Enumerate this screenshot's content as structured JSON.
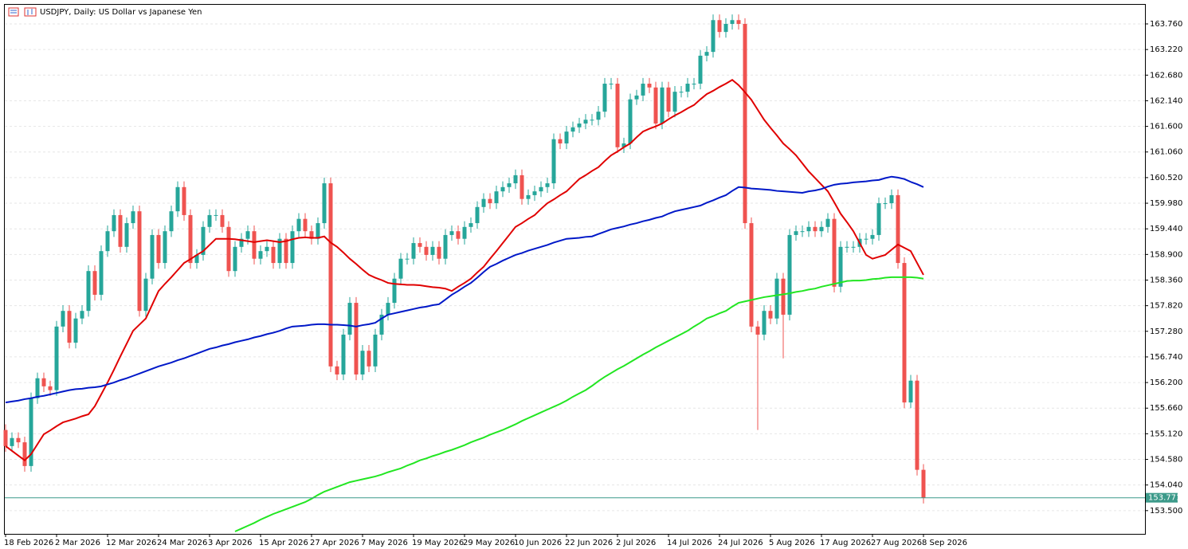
{
  "chart_data": {
    "type": "candlestick",
    "title": "USDJPY, Daily: US Dollar vs Japanese Yen",
    "categories": [
      "18 Feb 2026",
      null,
      null,
      null,
      null,
      null,
      null,
      null,
      "2 Mar 2026",
      null,
      null,
      null,
      null,
      null,
      null,
      null,
      "12 Mar 2026",
      null,
      null,
      null,
      null,
      null,
      null,
      null,
      "24 Mar 2026",
      null,
      null,
      null,
      null,
      null,
      null,
      null,
      "3 Apr 2026",
      null,
      null,
      null,
      null,
      null,
      null,
      null,
      "15 Apr 2026",
      null,
      null,
      null,
      null,
      null,
      null,
      null,
      "27 Apr 2026",
      null,
      null,
      null,
      null,
      null,
      null,
      null,
      "7 May 2026",
      null,
      null,
      null,
      null,
      null,
      null,
      null,
      "19 May 2026",
      null,
      null,
      null,
      null,
      null,
      null,
      null,
      "29 May 2026",
      null,
      null,
      null,
      null,
      null,
      null,
      null,
      "10 Jun 2026",
      null,
      null,
      null,
      null,
      null,
      null,
      null,
      "22 Jun 2026",
      null,
      null,
      null,
      null,
      null,
      null,
      null,
      "2 Jul 2026",
      null,
      null,
      null,
      null,
      null,
      null,
      null,
      "14 Jul 2026",
      null,
      null,
      null,
      null,
      null,
      null,
      null,
      "24 Jul 2026",
      null,
      null,
      null,
      null,
      null,
      null,
      null,
      "5 Aug 2026",
      null,
      null,
      null,
      null,
      null,
      null,
      null,
      "17 Aug 2026",
      null,
      null,
      null,
      null,
      null,
      null,
      null,
      "27 Aug 2026",
      null,
      null,
      null,
      null,
      null,
      null,
      null,
      "8 Sep 2026"
    ],
    "open": [
      155.2,
      154.86,
      155.03,
      154.94,
      154.44,
      155.87,
      156.29,
      156.12,
      156.04,
      157.38,
      157.71,
      157.04,
      157.55,
      157.71,
      158.55,
      158.05,
      158.97,
      159.39,
      159.73,
      159.06,
      159.56,
      159.81,
      157.71,
      158.39,
      159.31,
      158.72,
      159.39,
      159.81,
      160.32,
      159.73,
      158.72,
      158.89,
      159.48,
      159.73,
      159.73,
      159.48,
      158.55,
      159.06,
      159.23,
      159.39,
      158.81,
      158.97,
      159.06,
      158.72,
      159.23,
      158.72,
      159.39,
      159.65,
      159.39,
      159.23,
      159.56,
      160.4,
      156.54,
      156.37,
      157.21,
      157.88,
      156.37,
      156.87,
      156.54,
      157.21,
      157.63,
      157.88,
      158.39,
      158.81,
      158.81,
      159.14,
      159.06,
      158.89,
      159.06,
      158.81,
      159.31,
      159.39,
      159.23,
      159.48,
      159.56,
      159.9,
      160.07,
      159.98,
      160.23,
      160.32,
      160.4,
      160.57,
      160.07,
      160.15,
      160.23,
      160.32,
      160.4,
      161.33,
      161.24,
      161.49,
      161.58,
      161.66,
      161.74,
      161.74,
      161.91,
      162.5,
      162.5,
      161.16,
      161.24,
      162.17,
      162.25,
      162.5,
      162.42,
      161.66,
      162.42,
      161.91,
      162.33,
      162.33,
      162.5,
      162.5,
      163.09,
      163.17,
      163.84,
      163.59,
      163.76,
      163.84,
      163.76,
      159.56,
      157.38,
      157.21,
      157.71,
      157.55,
      158.39,
      157.63,
      159.31,
      159.39,
      159.39,
      159.48,
      159.39,
      159.48,
      159.65,
      158.22,
      159.06,
      159.06,
      159.06,
      159.23,
      159.23,
      159.31,
      159.98,
      159.98,
      160.15,
      158.72,
      155.78,
      156.24,
      154.36
    ],
    "high": [
      155.32,
      155.15,
      155.15,
      155.06,
      155.99,
      156.41,
      156.41,
      156.24,
      157.5,
      157.83,
      157.83,
      157.67,
      157.83,
      158.67,
      158.67,
      159.09,
      159.51,
      159.85,
      159.85,
      159.68,
      159.93,
      159.93,
      158.51,
      159.43,
      159.43,
      159.51,
      159.93,
      160.44,
      160.44,
      159.85,
      159.01,
      159.6,
      159.85,
      159.85,
      159.85,
      159.6,
      159.18,
      159.35,
      159.51,
      159.51,
      159.09,
      159.18,
      159.18,
      159.35,
      159.35,
      159.51,
      159.77,
      159.77,
      159.51,
      159.68,
      160.52,
      160.52,
      156.66,
      157.33,
      158.0,
      158.0,
      156.99,
      156.99,
      157.33,
      157.75,
      158.0,
      158.51,
      158.93,
      158.93,
      159.26,
      159.26,
      159.18,
      159.18,
      159.18,
      159.43,
      159.51,
      159.51,
      159.6,
      159.68,
      160.02,
      160.19,
      160.19,
      160.35,
      160.44,
      160.52,
      160.69,
      160.69,
      160.27,
      160.35,
      160.44,
      160.52,
      161.45,
      161.45,
      161.61,
      161.7,
      161.78,
      161.86,
      161.86,
      162.03,
      162.62,
      162.62,
      162.62,
      161.36,
      162.29,
      162.37,
      162.62,
      162.62,
      162.54,
      162.54,
      162.54,
      162.45,
      162.45,
      162.62,
      162.62,
      163.21,
      163.29,
      163.96,
      163.96,
      163.88,
      163.96,
      163.96,
      163.88,
      159.68,
      157.5,
      157.83,
      157.83,
      158.51,
      158.51,
      159.43,
      159.51,
      159.51,
      159.6,
      159.6,
      159.6,
      159.77,
      159.77,
      159.18,
      159.18,
      159.18,
      159.35,
      159.35,
      159.43,
      160.1,
      160.1,
      160.27,
      160.27,
      158.84,
      156.36,
      156.36,
      154.48
    ],
    "low": [
      154.74,
      154.74,
      154.82,
      154.32,
      154.32,
      155.75,
      156.0,
      155.92,
      155.92,
      157.26,
      156.92,
      156.92,
      157.43,
      157.59,
      157.93,
      157.93,
      158.85,
      159.27,
      158.94,
      158.94,
      159.44,
      157.59,
      157.59,
      158.27,
      158.6,
      158.6,
      159.27,
      159.69,
      159.61,
      158.6,
      158.6,
      158.77,
      159.36,
      159.61,
      159.36,
      158.43,
      158.43,
      158.94,
      159.11,
      158.69,
      158.69,
      158.85,
      158.6,
      158.6,
      158.6,
      158.6,
      159.27,
      159.27,
      159.11,
      159.11,
      159.44,
      156.42,
      156.25,
      156.25,
      157.09,
      156.25,
      156.25,
      156.42,
      156.42,
      157.09,
      157.51,
      157.76,
      158.27,
      158.69,
      158.69,
      158.94,
      158.77,
      158.77,
      158.69,
      158.69,
      159.19,
      159.11,
      159.11,
      159.36,
      159.44,
      159.78,
      159.86,
      159.86,
      160.11,
      160.2,
      160.28,
      159.95,
      159.95,
      160.03,
      160.11,
      160.2,
      160.28,
      161.12,
      161.12,
      161.37,
      161.46,
      161.54,
      161.62,
      161.62,
      161.79,
      162.38,
      161.04,
      161.04,
      161.12,
      162.05,
      162.13,
      162.3,
      161.54,
      161.54,
      161.79,
      161.79,
      162.21,
      162.21,
      162.38,
      162.38,
      162.97,
      163.05,
      163.47,
      163.47,
      163.64,
      163.64,
      159.44,
      157.26,
      155.2,
      157.09,
      157.43,
      157.43,
      156.71,
      157.51,
      159.19,
      159.27,
      159.27,
      159.27,
      159.27,
      159.36,
      158.1,
      158.1,
      158.94,
      158.94,
      158.94,
      159.11,
      159.11,
      159.19,
      159.86,
      159.86,
      158.6,
      155.66,
      155.66,
      154.24,
      153.65
    ],
    "close": [
      154.86,
      155.03,
      154.94,
      154.44,
      155.87,
      156.29,
      156.12,
      156.04,
      157.38,
      157.71,
      157.04,
      157.55,
      157.71,
      158.55,
      158.05,
      158.97,
      159.39,
      159.73,
      159.06,
      159.56,
      159.81,
      157.71,
      158.39,
      159.31,
      158.72,
      159.39,
      159.81,
      160.32,
      159.73,
      158.72,
      158.89,
      159.48,
      159.73,
      159.73,
      159.48,
      158.55,
      159.06,
      159.23,
      159.39,
      158.81,
      158.97,
      159.06,
      158.72,
      159.23,
      158.72,
      159.39,
      159.65,
      159.39,
      159.23,
      159.56,
      160.4,
      156.54,
      156.37,
      157.21,
      157.88,
      156.37,
      156.87,
      156.54,
      157.21,
      157.63,
      157.88,
      158.39,
      158.81,
      158.81,
      159.14,
      159.06,
      158.89,
      159.06,
      158.81,
      159.31,
      159.39,
      159.23,
      159.48,
      159.56,
      159.9,
      160.07,
      159.98,
      160.23,
      160.32,
      160.4,
      160.57,
      160.07,
      160.15,
      160.23,
      160.32,
      160.4,
      161.33,
      161.24,
      161.49,
      161.58,
      161.66,
      161.74,
      161.74,
      161.91,
      162.5,
      162.5,
      161.16,
      161.24,
      162.17,
      162.25,
      162.5,
      162.42,
      161.66,
      162.42,
      161.91,
      162.33,
      162.33,
      162.5,
      162.5,
      163.09,
      163.17,
      163.84,
      163.59,
      163.76,
      163.84,
      163.76,
      159.56,
      157.38,
      157.21,
      157.71,
      157.55,
      158.39,
      157.63,
      159.31,
      159.39,
      159.39,
      159.48,
      159.39,
      159.48,
      159.65,
      158.22,
      159.06,
      159.06,
      159.06,
      159.23,
      159.23,
      159.31,
      159.98,
      159.98,
      160.15,
      158.72,
      155.78,
      156.24,
      154.36,
      153.77
    ],
    "up_color": "#26a69a",
    "down_color": "#ef5350",
    "overlays": [
      {
        "color": "#e00000",
        "values": [
          154.86,
          154.76,
          154.66,
          154.56,
          154.69,
          154.9,
          155.11,
          155.19,
          155.28,
          155.36,
          155.4,
          155.44,
          155.49,
          155.53,
          155.7,
          155.95,
          156.2,
          156.47,
          156.75,
          157.02,
          157.29,
          157.42,
          157.55,
          157.84,
          158.13,
          158.28,
          158.42,
          158.57,
          158.72,
          158.8,
          158.89,
          158.97,
          159.1,
          159.23,
          159.23,
          159.23,
          159.22,
          159.2,
          159.18,
          159.16,
          159.18,
          159.2,
          159.18,
          159.16,
          159.18,
          159.22,
          159.25,
          159.26,
          159.25,
          159.25,
          159.28,
          159.15,
          159.06,
          158.94,
          158.81,
          158.7,
          158.58,
          158.47,
          158.41,
          158.36,
          158.3,
          158.28,
          158.27,
          158.26,
          158.26,
          158.25,
          158.23,
          158.21,
          158.2,
          158.18,
          158.13,
          158.22,
          158.3,
          158.39,
          158.52,
          158.64,
          158.81,
          158.97,
          159.14,
          159.31,
          159.48,
          159.56,
          159.65,
          159.73,
          159.86,
          159.98,
          160.06,
          160.15,
          160.23,
          160.36,
          160.49,
          160.57,
          160.66,
          160.74,
          160.87,
          160.99,
          161.07,
          161.16,
          161.24,
          161.37,
          161.49,
          161.55,
          161.6,
          161.66,
          161.75,
          161.83,
          161.9,
          161.98,
          162.05,
          162.17,
          162.28,
          162.35,
          162.43,
          162.5,
          162.58,
          162.47,
          162.32,
          162.16,
          161.95,
          161.74,
          161.57,
          161.41,
          161.24,
          161.12,
          160.99,
          160.82,
          160.65,
          160.51,
          160.37,
          160.23,
          160.0,
          159.76,
          159.58,
          159.39,
          159.14,
          158.89,
          158.81,
          158.85,
          158.89,
          159.0,
          159.11,
          159.04,
          158.97,
          158.72,
          158.47
        ]
      },
      {
        "color": "#0018c8",
        "values": [
          155.78,
          155.8,
          155.82,
          155.85,
          155.87,
          155.9,
          155.92,
          155.95,
          155.98,
          156.01,
          156.04,
          156.06,
          156.07,
          156.09,
          156.1,
          156.12,
          156.16,
          156.2,
          156.25,
          156.29,
          156.34,
          156.39,
          156.44,
          156.49,
          156.54,
          156.58,
          156.62,
          156.67,
          156.71,
          156.76,
          156.81,
          156.86,
          156.91,
          156.94,
          156.98,
          157.01,
          157.05,
          157.08,
          157.11,
          157.15,
          157.18,
          157.22,
          157.25,
          157.29,
          157.34,
          157.38,
          157.39,
          157.4,
          157.42,
          157.43,
          157.43,
          157.42,
          157.42,
          157.41,
          157.4,
          157.38,
          157.41,
          157.43,
          157.46,
          157.55,
          157.63,
          157.66,
          157.69,
          157.72,
          157.75,
          157.78,
          157.8,
          157.83,
          157.85,
          157.95,
          158.05,
          158.13,
          158.22,
          158.3,
          158.41,
          158.53,
          158.64,
          158.7,
          158.77,
          158.83,
          158.89,
          158.93,
          158.98,
          159.02,
          159.06,
          159.1,
          159.15,
          159.19,
          159.23,
          159.24,
          159.25,
          159.27,
          159.28,
          159.33,
          159.38,
          159.43,
          159.46,
          159.49,
          159.53,
          159.56,
          159.6,
          159.63,
          159.67,
          159.7,
          159.76,
          159.81,
          159.84,
          159.87,
          159.9,
          159.93,
          159.99,
          160.04,
          160.1,
          160.15,
          160.24,
          160.32,
          160.31,
          160.29,
          160.28,
          160.27,
          160.26,
          160.24,
          160.23,
          160.22,
          160.21,
          160.2,
          160.23,
          160.25,
          160.28,
          160.33,
          160.37,
          160.39,
          160.4,
          160.42,
          160.43,
          160.44,
          160.46,
          160.47,
          160.51,
          160.54,
          160.52,
          160.49,
          160.43,
          160.38,
          160.32
        ]
      },
      {
        "color": "#22e622",
        "values": [
          null,
          null,
          null,
          null,
          null,
          null,
          null,
          null,
          null,
          null,
          null,
          null,
          null,
          null,
          null,
          null,
          null,
          null,
          null,
          null,
          null,
          null,
          null,
          null,
          null,
          null,
          null,
          null,
          null,
          null,
          null,
          null,
          null,
          null,
          null,
          null,
          153.06,
          153.12,
          153.18,
          153.24,
          153.31,
          153.37,
          153.43,
          153.48,
          153.53,
          153.58,
          153.63,
          153.68,
          153.75,
          153.83,
          153.9,
          153.95,
          154.0,
          154.05,
          154.1,
          154.13,
          154.16,
          154.19,
          154.22,
          154.26,
          154.31,
          154.35,
          154.39,
          154.45,
          154.5,
          154.56,
          154.6,
          154.65,
          154.69,
          154.74,
          154.78,
          154.83,
          154.88,
          154.94,
          154.99,
          155.04,
          155.1,
          155.15,
          155.2,
          155.26,
          155.32,
          155.39,
          155.45,
          155.51,
          155.57,
          155.63,
          155.69,
          155.75,
          155.82,
          155.9,
          155.97,
          156.04,
          156.13,
          156.23,
          156.32,
          156.4,
          156.48,
          156.55,
          156.63,
          156.71,
          156.79,
          156.86,
          156.94,
          157.01,
          157.08,
          157.15,
          157.22,
          157.29,
          157.38,
          157.46,
          157.55,
          157.6,
          157.66,
          157.71,
          157.8,
          157.88,
          157.91,
          157.94,
          157.97,
          158.0,
          158.02,
          158.04,
          158.06,
          158.08,
          158.11,
          158.13,
          158.16,
          158.18,
          158.22,
          158.25,
          158.28,
          158.31,
          158.34,
          158.35,
          158.35,
          158.36,
          158.38,
          158.39,
          158.41,
          158.42,
          158.42,
          158.42,
          158.42,
          158.41,
          158.39
        ]
      }
    ],
    "last_price": {
      "value": 153.771,
      "label": "153.771"
    },
    "last_price_color": "#3c9a8a",
    "ylim": [
      153.01,
      164.18
    ],
    "yticks": [
      {
        "value": 163.76,
        "label": "163.760"
      },
      {
        "value": 163.22,
        "label": "163.220"
      },
      {
        "value": 162.68,
        "label": "162.680"
      },
      {
        "value": 162.14,
        "label": "162.140"
      },
      {
        "value": 161.6,
        "label": "161.600"
      },
      {
        "value": 161.06,
        "label": "161.060"
      },
      {
        "value": 160.52,
        "label": "160.520"
      },
      {
        "value": 159.98,
        "label": "159.980"
      },
      {
        "value": 159.44,
        "label": "159.440"
      },
      {
        "value": 158.9,
        "label": "158.900"
      },
      {
        "value": 158.36,
        "label": "158.360"
      },
      {
        "value": 157.82,
        "label": "157.820"
      },
      {
        "value": 157.28,
        "label": "157.280"
      },
      {
        "value": 156.74,
        "label": "156.740"
      },
      {
        "value": 156.2,
        "label": "156.200"
      },
      {
        "value": 155.66,
        "label": "155.660"
      },
      {
        "value": 155.12,
        "label": "155.120"
      },
      {
        "value": 154.58,
        "label": "154.580"
      },
      {
        "value": 154.04,
        "label": "154.040"
      },
      {
        "value": 153.5,
        "label": "153.500"
      }
    ],
    "grid": true
  }
}
